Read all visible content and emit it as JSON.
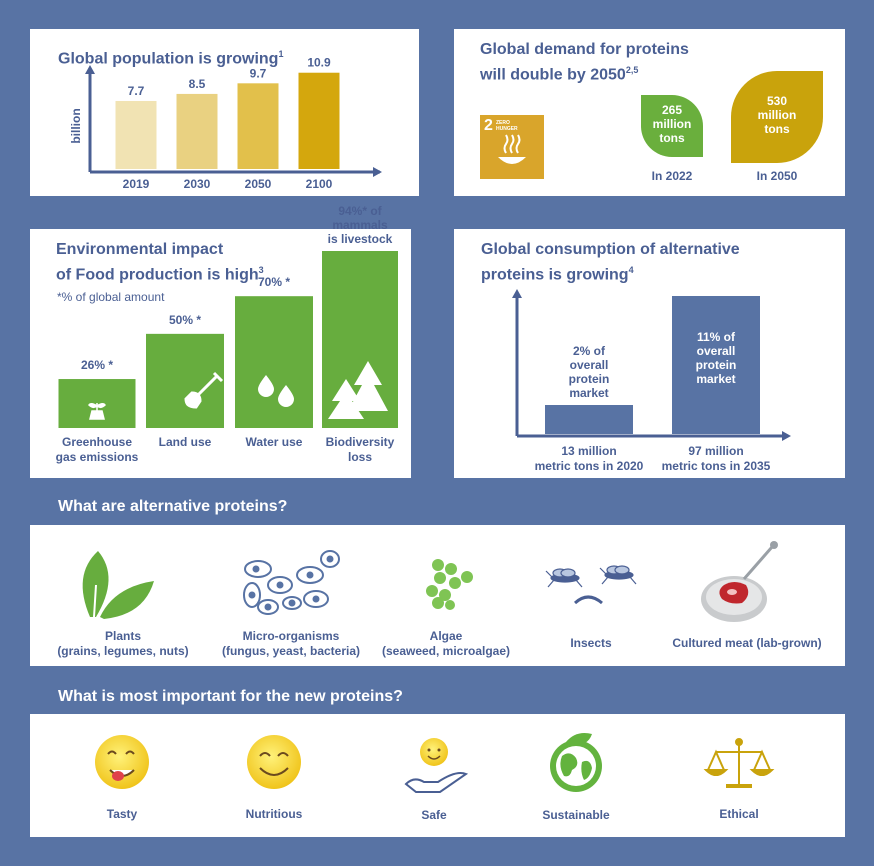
{
  "population": {
    "title": "Global population is growing",
    "title_sup": "1",
    "ylabel": "billion",
    "chart_data": {
      "type": "bar",
      "categories": [
        "2019",
        "2030",
        "2050",
        "2100"
      ],
      "values": [
        7.7,
        8.5,
        9.7,
        10.9
      ],
      "ylabel": "billion",
      "colors": [
        "#f1e3b3",
        "#e9d181",
        "#e2c04b",
        "#d4a70d"
      ]
    }
  },
  "demand": {
    "title_line1": "Global demand for proteins",
    "title_line2": "will double by 2050",
    "title_sup": "2,5",
    "sdg_number": "2",
    "sdg_text_1": "ZERO",
    "sdg_text_2": "HUNGER",
    "leaf_2022": {
      "value": "265",
      "unit1": "million",
      "unit2": "tons",
      "year": "In 2022",
      "color": "#6aaf3d"
    },
    "leaf_2050": {
      "value": "530",
      "unit1": "million",
      "unit2": "tons",
      "year": "In 2050",
      "color": "#c9a30c"
    }
  },
  "environment": {
    "title_line1": "Environmental impact",
    "title_line2": "of Food production is high",
    "title_sup": "3",
    "note": "*% of global amount",
    "chart_data": {
      "type": "bar",
      "categories": [
        "Greenhouse gas emissions",
        "Land use",
        "Water use",
        "Biodiversity loss"
      ],
      "values": [
        26,
        50,
        70,
        94
      ],
      "value_labels": [
        "26% *",
        "50% *",
        "70% *",
        "94%* of"
      ],
      "extra_label_lines": [
        "mammals",
        "is livestock"
      ],
      "category_lines": [
        [
          "Greenhouse",
          "gas emissions"
        ],
        [
          "Land use"
        ],
        [
          "Water use"
        ],
        [
          "Biodiversity",
          "loss"
        ]
      ],
      "color": "#67ad3e"
    }
  },
  "consumption": {
    "title_line1": "Global consumption of alternative",
    "title_line2": "proteins is growing",
    "title_sup": "4",
    "chart_data": {
      "type": "bar",
      "categories": [
        "2020",
        "2035"
      ],
      "values": [
        13,
        97
      ],
      "units": "million metric tons",
      "bar1_text": [
        "2% of",
        "overall",
        "protein",
        "market"
      ],
      "bar2_text": [
        "11% of",
        "overall",
        "protein",
        "market"
      ],
      "cat1_lines": [
        "13 million",
        "metric tons in 2020"
      ],
      "cat2_lines": [
        "97 million",
        "metric tons in 2035"
      ],
      "color": "#5873a4"
    }
  },
  "alt_section": {
    "heading": "What are alternative proteins?",
    "items": [
      {
        "name": "Plants",
        "detail": "(grains, legumes, nuts)"
      },
      {
        "name": "Micro-organisms",
        "detail": "(fungus, yeast, bacteria)"
      },
      {
        "name": "Algae",
        "detail": "(seaweed, microalgae)"
      },
      {
        "name": "Insects",
        "detail": ""
      },
      {
        "name": "Cultured meat (lab-grown)",
        "detail": ""
      }
    ]
  },
  "important_section": {
    "heading": "What is most important for the new proteins?",
    "items": [
      "Tasty",
      "Nutritious",
      "Safe",
      "Sustainable",
      "Ethical"
    ]
  }
}
